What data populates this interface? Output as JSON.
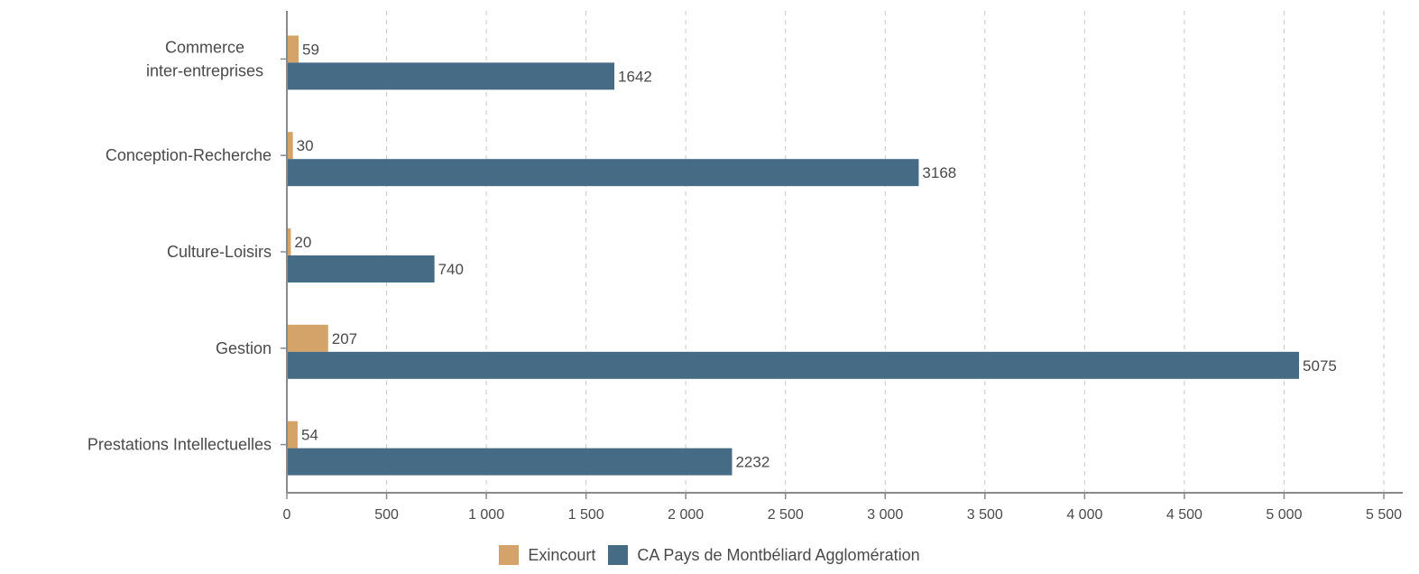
{
  "chart_data": {
    "type": "bar",
    "orientation": "horizontal",
    "categories": [
      [
        "Commerce",
        "inter-entreprises"
      ],
      [
        "Conception-Recherche"
      ],
      [
        "Culture-Loisirs"
      ],
      [
        "Gestion"
      ],
      [
        "Prestations Intellectuelles"
      ]
    ],
    "series": [
      {
        "name": "Exincourt",
        "color": "#d4a36a",
        "values": [
          59,
          30,
          20,
          207,
          54
        ]
      },
      {
        "name": "CA Pays de Montbéliard Agglomération",
        "color": "#456b85",
        "values": [
          1642,
          3168,
          740,
          5075,
          2232
        ]
      }
    ],
    "xlim": [
      0,
      5500
    ],
    "xticks": [
      0,
      500,
      1000,
      1500,
      2000,
      2500,
      3000,
      3500,
      4000,
      4500,
      5000,
      5500
    ],
    "xtick_labels": [
      "0",
      "500",
      "1 000",
      "1 500",
      "2 000",
      "2 500",
      "3 000",
      "3 500",
      "4 000",
      "4 500",
      "5 000",
      "5 500"
    ],
    "grid": "vertical-dashed",
    "legend_position": "bottom"
  }
}
